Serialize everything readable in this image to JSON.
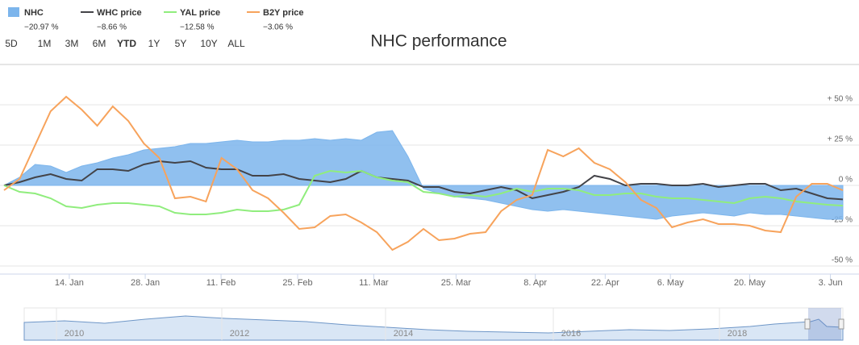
{
  "chart_data": {
    "type": "line",
    "title": "NHC performance",
    "range_buttons": [
      "5D",
      "1M",
      "3M",
      "6M",
      "YTD",
      "1Y",
      "5Y",
      "10Y",
      "ALL"
    ],
    "selected_range": "YTD",
    "xlim": [
      0,
      54
    ],
    "xticks": [
      {
        "value": 4.2,
        "label": "14. Jan"
      },
      {
        "value": 9.09,
        "label": "28. Jan"
      },
      {
        "value": 13.97,
        "label": "11. Feb"
      },
      {
        "value": 18.9,
        "label": "25. Feb"
      },
      {
        "value": 23.8,
        "label": "11. Mar"
      },
      {
        "value": 29.1,
        "label": "25. Mar"
      },
      {
        "value": 34.2,
        "label": "8. Apr"
      },
      {
        "value": 38.7,
        "label": "22. Apr"
      },
      {
        "value": 42.9,
        "label": "6. May"
      },
      {
        "value": 48.0,
        "label": "20. May"
      },
      {
        "value": 53.2,
        "label": "3. Jun"
      }
    ],
    "ylim": [
      -55,
      75
    ],
    "yticks": [
      {
        "value": 50,
        "label": "+ 50 %"
      },
      {
        "value": 25,
        "label": "+ 25 %"
      },
      {
        "value": 0,
        "label": "0 %"
      },
      {
        "value": -25,
        "label": "-25 %"
      },
      {
        "value": -50,
        "label": "-50 %"
      }
    ],
    "grid": true,
    "legend": "top-left",
    "navigator_years": [
      "2010",
      "2012",
      "2014",
      "2016",
      "2018"
    ],
    "series": [
      {
        "name": "NHC",
        "kind": "area",
        "color": "#7cb5ec",
        "legend_value": "−20.97 %",
        "values": [
          0,
          5,
          13,
          12,
          8,
          12,
          14,
          17,
          19,
          22,
          23,
          24,
          26,
          26,
          27,
          28,
          27,
          27,
          28,
          28,
          29,
          28,
          29,
          28,
          33,
          34,
          18,
          -2,
          -5,
          -7,
          -8,
          -9,
          -11,
          -13,
          -15,
          -16,
          -15,
          -16,
          -17,
          -18,
          -19,
          -20,
          -21,
          -19,
          -18,
          -17,
          -18,
          -19,
          -17,
          -18,
          -18,
          -19,
          -20,
          -21,
          -20.97
        ]
      },
      {
        "name": "WHC price",
        "kind": "line",
        "color": "#434348",
        "legend_value": "−8.66 %",
        "values": [
          0,
          2,
          5,
          7,
          4,
          3,
          10,
          10,
          9,
          13,
          15,
          14,
          15,
          11,
          10,
          10,
          6,
          6,
          7,
          4,
          3,
          2,
          4,
          9,
          5,
          4,
          3,
          -1,
          -1,
          -4,
          -5,
          -3,
          -1,
          -3,
          -8,
          -6,
          -4,
          -1,
          6,
          4,
          0,
          1,
          1,
          0,
          0,
          1,
          -1,
          0,
          1,
          1,
          -3,
          -2,
          -5,
          -8,
          -8.66
        ]
      },
      {
        "name": "YAL price",
        "kind": "line",
        "color": "#90ed7d",
        "legend_value": "−12.58 %",
        "values": [
          0,
          -4,
          -5,
          -8,
          -13,
          -14,
          -12,
          -11,
          -11,
          -12,
          -13,
          -17,
          -18,
          -18,
          -17,
          -15,
          -16,
          -16,
          -15,
          -12,
          6,
          9,
          8,
          9,
          5,
          3,
          2,
          -4,
          -5,
          -7,
          -6,
          -7,
          -5,
          -2,
          -4,
          -2,
          -2,
          -3,
          -6,
          -6,
          -5,
          -5,
          -7,
          -8,
          -8,
          -9,
          -10,
          -11,
          -8,
          -7,
          -8,
          -10,
          -11,
          -12,
          -12.58
        ]
      },
      {
        "name": "B2Y price",
        "kind": "line",
        "color": "#f7a35c",
        "legend_value": "−3.06 %",
        "values": [
          -3,
          4,
          25,
          46,
          55,
          47,
          37,
          49,
          40,
          26,
          17,
          -8,
          -7,
          -10,
          17,
          10,
          -3,
          -8,
          -17,
          -27,
          -26,
          -19,
          -18,
          -23,
          -29,
          -40,
          -35,
          -27,
          -34,
          -33,
          -30,
          -29,
          -16,
          -9,
          -6,
          22,
          18,
          23,
          14,
          10,
          2,
          -9,
          -14,
          -26,
          -23,
          -21,
          -24,
          -24,
          -25,
          -28,
          -29,
          -7,
          1,
          1,
          -3.06
        ]
      }
    ]
  }
}
